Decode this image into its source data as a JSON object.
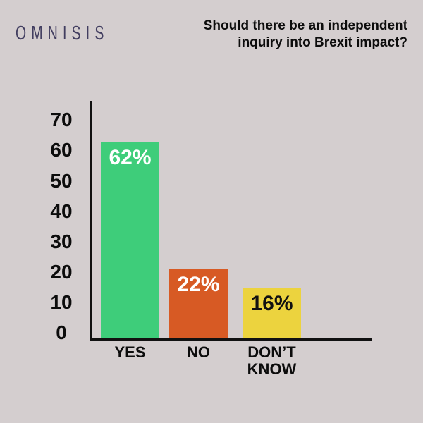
{
  "brand": {
    "name": "OMNISIS"
  },
  "colors": {
    "background": "#d4cecf",
    "axis": "#111111",
    "logo": "#423e60",
    "title_text": "#0c0c0c"
  },
  "chart_data": {
    "type": "bar",
    "title": "Should there be an independent inquiry into Brexit impact?",
    "categories": [
      "YES",
      "NO",
      "DON’T KNOW"
    ],
    "values": [
      62,
      22,
      16
    ],
    "value_labels": [
      "62%",
      "22%",
      "16%"
    ],
    "bar_colors": [
      "#3ecd7a",
      "#d75a24",
      "#ecd33e"
    ],
    "value_label_colors": [
      "#ffffff",
      "#ffffff",
      "#111111"
    ],
    "xlabel": "",
    "ylabel": "",
    "ylim": [
      0,
      70
    ],
    "yticks": [
      0,
      10,
      20,
      30,
      40,
      50,
      60,
      70
    ],
    "grid": false,
    "legend": "none"
  }
}
